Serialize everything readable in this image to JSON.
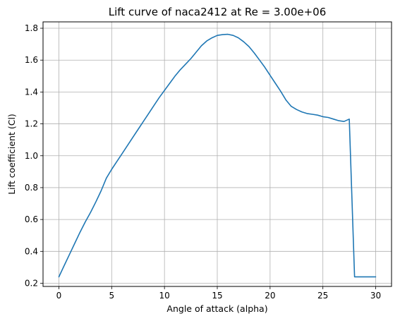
{
  "chart_data": {
    "type": "line",
    "title": "Lift curve of naca2412 at Re = 3.00e+06",
    "xlabel": "Angle of attack (alpha)",
    "ylabel": "Lift coefficient (Cl)",
    "xlim": [
      -1.5,
      31.5
    ],
    "ylim": [
      0.18,
      1.84
    ],
    "xticks": [
      0,
      5,
      10,
      15,
      20,
      25,
      30
    ],
    "xtick_labels": [
      "0",
      "5",
      "10",
      "15",
      "20",
      "25",
      "30"
    ],
    "yticks": [
      0.2,
      0.4,
      0.6,
      0.8,
      1.0,
      1.2,
      1.4,
      1.6,
      1.8
    ],
    "ytick_labels": [
      "0.2",
      "0.4",
      "0.6",
      "0.8",
      "1.0",
      "1.2",
      "1.4",
      "1.6",
      "1.8"
    ],
    "grid": true,
    "colors": {
      "line": "#1f77b4",
      "grid": "#b0b0b0",
      "axes": "#000000"
    },
    "series": [
      {
        "x": [
          0,
          0.5,
          1,
          1.5,
          2,
          2.5,
          3,
          3.5,
          4,
          4.5,
          5,
          5.5,
          6,
          6.5,
          7,
          7.5,
          8,
          8.5,
          9,
          9.5,
          10,
          10.5,
          11,
          11.5,
          12,
          12.5,
          13,
          13.5,
          14,
          14.5,
          15,
          15.5,
          16,
          16.5,
          17,
          17.5,
          18,
          18.5,
          19,
          19.5,
          20,
          20.5,
          21,
          21.5,
          22,
          22.5,
          23,
          23.5,
          24,
          24.5,
          25,
          25.5,
          26,
          26.5,
          27,
          27.5,
          28,
          28.5,
          29,
          29.5,
          30
        ],
        "y": [
          0.24,
          0.31,
          0.38,
          0.45,
          0.52,
          0.585,
          0.645,
          0.71,
          0.78,
          0.86,
          0.915,
          0.965,
          1.015,
          1.065,
          1.115,
          1.165,
          1.215,
          1.265,
          1.315,
          1.365,
          1.41,
          1.455,
          1.5,
          1.54,
          1.575,
          1.61,
          1.65,
          1.69,
          1.72,
          1.74,
          1.755,
          1.76,
          1.762,
          1.755,
          1.74,
          1.715,
          1.685,
          1.645,
          1.6,
          1.555,
          1.505,
          1.455,
          1.405,
          1.35,
          1.31,
          1.29,
          1.275,
          1.265,
          1.26,
          1.255,
          1.245,
          1.24,
          1.23,
          1.22,
          1.215,
          1.23,
          0.24,
          0.24,
          0.24,
          0.24,
          0.24
        ]
      }
    ]
  }
}
